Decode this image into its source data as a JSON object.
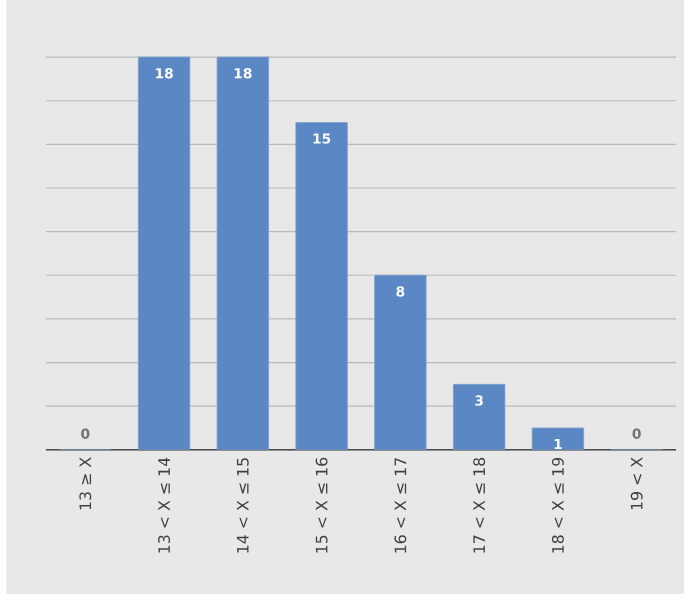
{
  "chart_data": {
    "type": "bar",
    "categories": [
      "13 ≥ X",
      "13 < X ≤ 14",
      "14 < X ≤ 15",
      "15 < X ≤ 16",
      "16 < X ≤ 17",
      "17 < X ≤ 18",
      "18 < X ≤ 19",
      "19 < X"
    ],
    "values": [
      0,
      18,
      18,
      15,
      8,
      3,
      1,
      0
    ],
    "color": "#5b87c4",
    "grid": "y",
    "data_labels": true,
    "tick_labels": "x"
  }
}
